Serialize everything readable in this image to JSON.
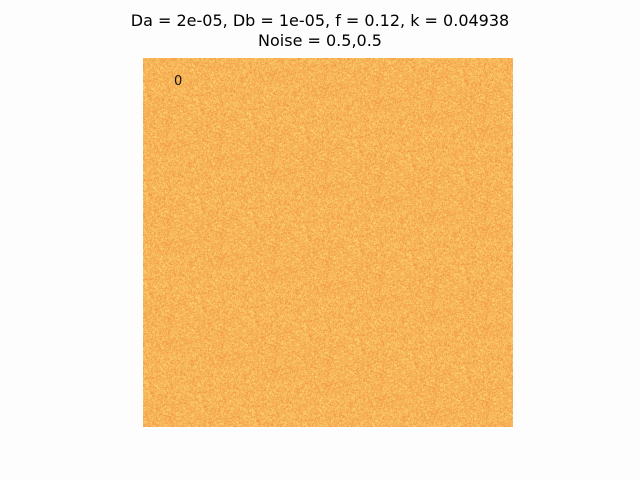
{
  "figure": {
    "title_line_1": "Da = 2e-05, Db = 1e-05, f = 0.12, k = 0.04938",
    "title_line_2": "Noise = 0.5,0.5",
    "frame_label": "0"
  },
  "image": {
    "description_colors": {
      "base": "#f7b558",
      "light": "#ffe27a",
      "dark": "#f08a3c"
    },
    "colormap": "YlOrRd-like noise field"
  }
}
